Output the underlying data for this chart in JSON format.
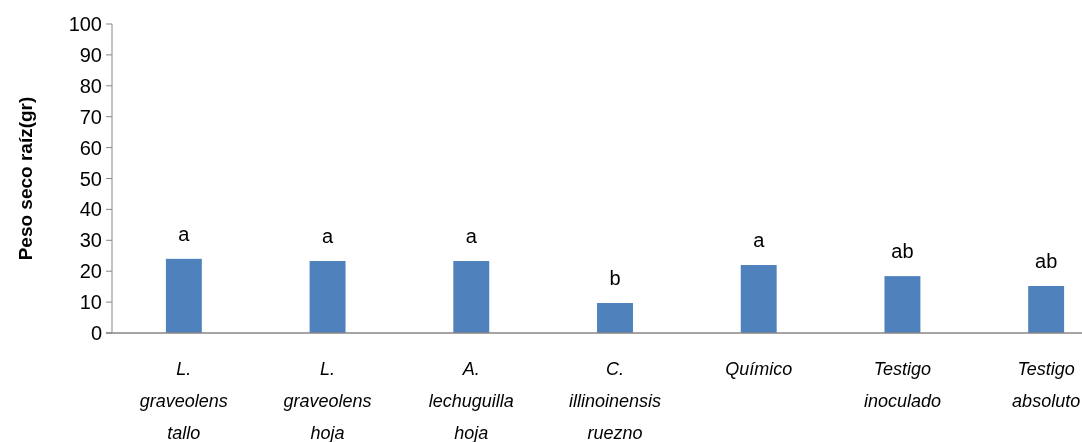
{
  "chart_data": {
    "type": "bar",
    "ylabel": "Peso seco raíz(gr)",
    "categories": [
      "L. graveolens tallo",
      "L. graveolens hoja",
      "A. lechuguilla hoja",
      "C. illinoinensis ruezno",
      "Químico",
      "Testigo inoculado",
      "Testigo absoluto"
    ],
    "values": [
      24,
      23.3,
      23.3,
      9.7,
      22,
      18.4,
      15.2
    ],
    "color": "#4f81bd",
    "ylim": [
      0,
      100
    ],
    "yticks": [
      0,
      10,
      20,
      30,
      40,
      50,
      60,
      70,
      80,
      90,
      100
    ],
    "annotations": [
      {
        "text": "a",
        "x": "L. graveolens tallo",
        "y": 24
      },
      {
        "text": "a",
        "x": "L. graveolens hoja",
        "y": 23.3
      },
      {
        "text": "a",
        "x": "A. lechuguilla hoja",
        "y": 23.3
      },
      {
        "text": "b",
        "x": "C. illinoinensis ruezno",
        "y": 9.7
      },
      {
        "text": "a",
        "x": "Químico",
        "y": 22
      },
      {
        "text": "ab",
        "x": "Testigo inoculado",
        "y": 18.4
      },
      {
        "text": "ab",
        "x": "Testigo absoluto",
        "y": 15.2
      }
    ]
  }
}
